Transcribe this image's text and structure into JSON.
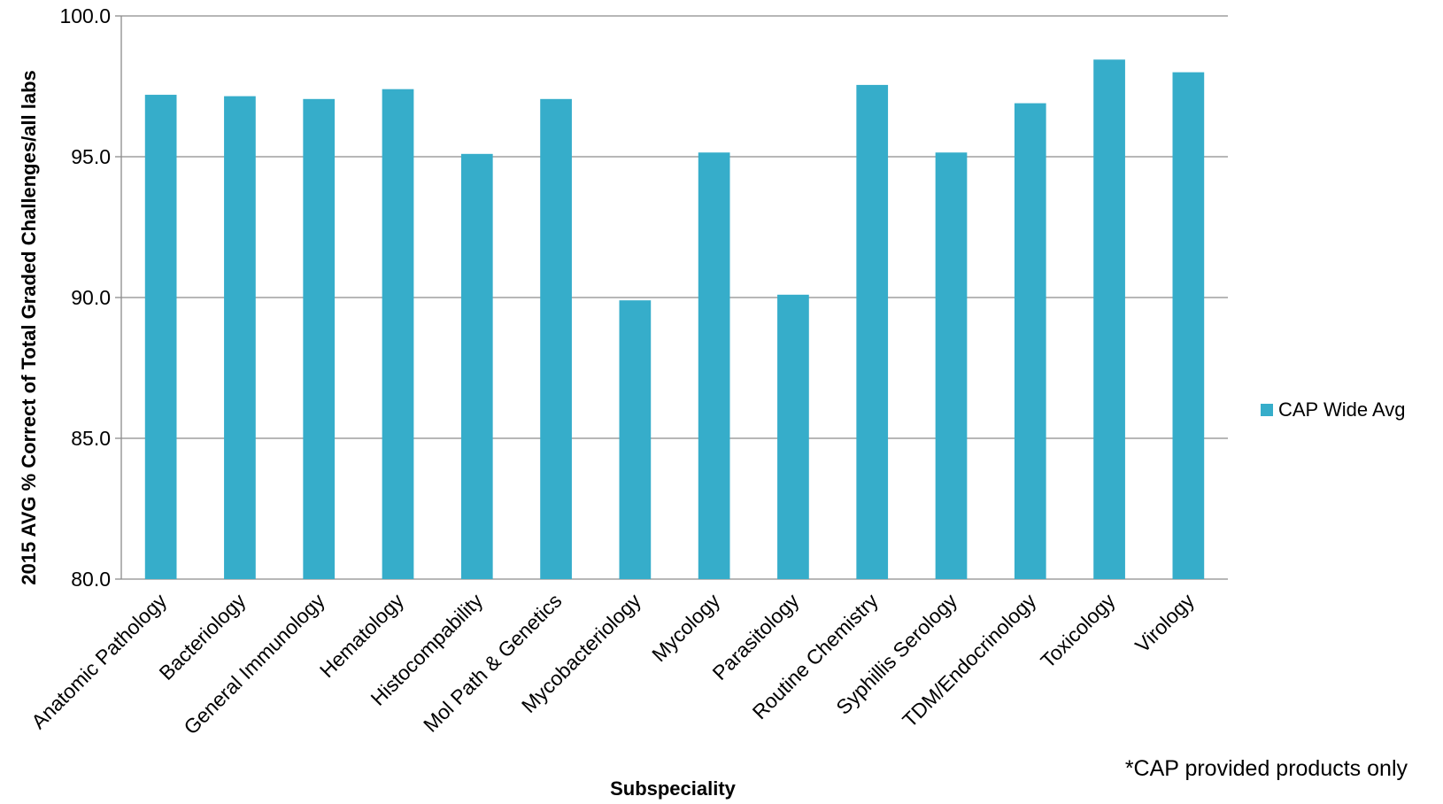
{
  "chart_data": {
    "type": "bar",
    "categories": [
      "Anatomic Pathology",
      "Bacteriology",
      "General Immunology",
      "Hematology",
      "Histocompability",
      "Mol Path & Genetics",
      "Mycobacteriology",
      "Mycology",
      "Parasitology",
      "Routine Chemistry",
      "Syphillis Serology",
      "TDM/Endocrinology",
      "Toxicology",
      "Virology"
    ],
    "series": [
      {
        "name": "CAP Wide Avg",
        "values": [
          97.2,
          97.15,
          97.05,
          97.4,
          95.1,
          97.05,
          89.9,
          95.15,
          90.1,
          97.55,
          95.15,
          96.9,
          98.45,
          98.0
        ],
        "color": "#36ADCA"
      }
    ],
    "ylim": [
      80.0,
      100.0
    ],
    "yticks": [
      "80.0",
      "85.0",
      "90.0",
      "95.0",
      "100.0"
    ],
    "ylabel": "2015 AVG % Correct of Total Graded Challenges/all labs",
    "xlabel": "Subspeciality",
    "grid": true,
    "legend_position": "right",
    "gridline_color": "#8C8C8C",
    "footnote": "*CAP provided products only"
  }
}
